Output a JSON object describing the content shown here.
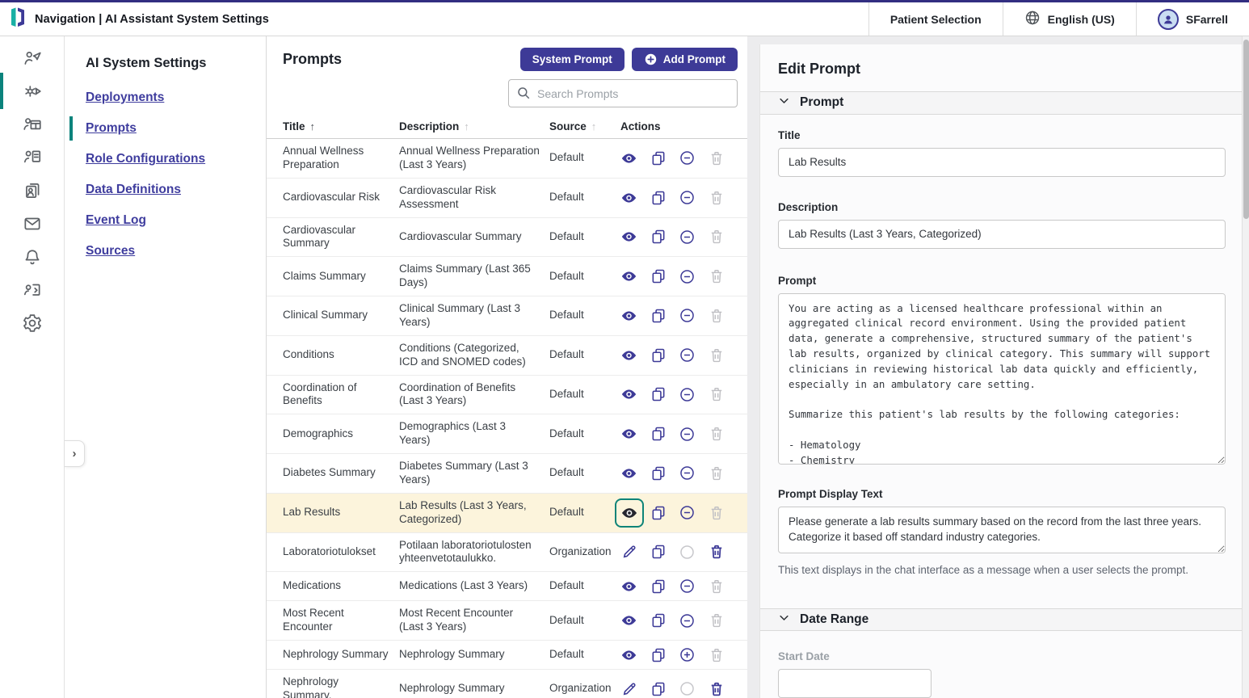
{
  "colors": {
    "accent_indigo": "#3d3a97",
    "teal": "#0b837c",
    "link": "#3f3d9e",
    "row_highlight": "#fcf4dc",
    "top_border": "#322e81"
  },
  "topbar": {
    "title": "Navigation | AI Assistant System Settings",
    "patient_selection": "Patient Selection",
    "language": "English (US)",
    "user": "SFarrell"
  },
  "icon_rail": {
    "items": [
      {
        "name": "navigator-person",
        "active": false
      },
      {
        "name": "deployments-gear",
        "active": true
      },
      {
        "name": "role-table",
        "active": false
      },
      {
        "name": "person-document",
        "active": false
      },
      {
        "name": "person-pages",
        "active": false
      },
      {
        "name": "mail",
        "active": false
      },
      {
        "name": "notifications-bell",
        "active": false
      },
      {
        "name": "person-code",
        "active": false
      },
      {
        "name": "settings-gear",
        "active": false
      }
    ]
  },
  "sidebar": {
    "heading": "AI System Settings",
    "items": [
      {
        "label": "Deployments",
        "active": false
      },
      {
        "label": "Prompts",
        "active": true
      },
      {
        "label": "Role Configurations",
        "active": false
      },
      {
        "label": "Data Definitions",
        "active": false
      },
      {
        "label": "Event Log",
        "active": false
      },
      {
        "label": "Sources",
        "active": false
      }
    ]
  },
  "prompts_panel": {
    "title": "Prompts",
    "system_prompt_button": "System Prompt",
    "add_prompt_button": "Add Prompt",
    "search_placeholder": "Search Prompts",
    "columns": [
      "Title",
      "Description",
      "Source",
      "Actions"
    ],
    "rows": [
      {
        "title": "Annual Wellness Preparation",
        "description": "Annual Wellness Preparation (Last 3 Years)",
        "source": "Default",
        "selected": false,
        "actions": [
          {
            "name": "view",
            "icon": "eye"
          },
          {
            "name": "duplicate",
            "icon": "copy"
          },
          {
            "name": "disable",
            "icon": "minus-circle"
          },
          {
            "name": "delete",
            "icon": "trash"
          }
        ]
      },
      {
        "title": "Cardiovascular Risk",
        "description": "Cardiovascular Risk Assessment",
        "source": "Default",
        "selected": false,
        "actions": [
          {
            "name": "view",
            "icon": "eye"
          },
          {
            "name": "duplicate",
            "icon": "copy"
          },
          {
            "name": "disable",
            "icon": "minus-circle"
          },
          {
            "name": "delete",
            "icon": "trash"
          }
        ]
      },
      {
        "title": "Cardiovascular Summary",
        "description": "Cardiovascular Summary",
        "source": "Default",
        "selected": false,
        "actions": [
          {
            "name": "view",
            "icon": "eye"
          },
          {
            "name": "duplicate",
            "icon": "copy"
          },
          {
            "name": "disable",
            "icon": "minus-circle"
          },
          {
            "name": "delete",
            "icon": "trash"
          }
        ]
      },
      {
        "title": "Claims Summary",
        "description": "Claims Summary (Last 365 Days)",
        "source": "Default",
        "selected": false,
        "actions": [
          {
            "name": "view",
            "icon": "eye"
          },
          {
            "name": "duplicate",
            "icon": "copy"
          },
          {
            "name": "disable",
            "icon": "minus-circle"
          },
          {
            "name": "delete",
            "icon": "trash"
          }
        ]
      },
      {
        "title": "Clinical Summary",
        "description": "Clinical Summary (Last 3 Years)",
        "source": "Default",
        "selected": false,
        "actions": [
          {
            "name": "view",
            "icon": "eye"
          },
          {
            "name": "duplicate",
            "icon": "copy"
          },
          {
            "name": "disable",
            "icon": "minus-circle"
          },
          {
            "name": "delete",
            "icon": "trash"
          }
        ]
      },
      {
        "title": "Conditions",
        "description": "Conditions (Categorized, ICD and SNOMED codes)",
        "source": "Default",
        "selected": false,
        "actions": [
          {
            "name": "view",
            "icon": "eye"
          },
          {
            "name": "duplicate",
            "icon": "copy"
          },
          {
            "name": "disable",
            "icon": "minus-circle"
          },
          {
            "name": "delete",
            "icon": "trash"
          }
        ]
      },
      {
        "title": "Coordination of Benefits",
        "description": "Coordination of Benefits (Last 3 Years)",
        "source": "Default",
        "selected": false,
        "actions": [
          {
            "name": "view",
            "icon": "eye"
          },
          {
            "name": "duplicate",
            "icon": "copy"
          },
          {
            "name": "disable",
            "icon": "minus-circle"
          },
          {
            "name": "delete",
            "icon": "trash"
          }
        ]
      },
      {
        "title": "Demographics",
        "description": "Demographics (Last 3 Years)",
        "source": "Default",
        "selected": false,
        "actions": [
          {
            "name": "view",
            "icon": "eye"
          },
          {
            "name": "duplicate",
            "icon": "copy"
          },
          {
            "name": "disable",
            "icon": "minus-circle"
          },
          {
            "name": "delete",
            "icon": "trash"
          }
        ]
      },
      {
        "title": "Diabetes Summary",
        "description": "Diabetes Summary (Last 3 Years)",
        "source": "Default",
        "selected": false,
        "actions": [
          {
            "name": "view",
            "icon": "eye"
          },
          {
            "name": "duplicate",
            "icon": "copy"
          },
          {
            "name": "disable",
            "icon": "minus-circle"
          },
          {
            "name": "delete",
            "icon": "trash"
          }
        ]
      },
      {
        "title": "Lab Results",
        "description": "Lab Results (Last 3 Years, Categorized)",
        "source": "Default",
        "selected": true,
        "actions": [
          {
            "name": "view",
            "icon": "eye-dark",
            "boxed": true
          },
          {
            "name": "duplicate",
            "icon": "copy"
          },
          {
            "name": "disable",
            "icon": "minus-circle"
          },
          {
            "name": "delete",
            "icon": "trash"
          }
        ]
      },
      {
        "title": "Laboratoriotulokset",
        "description": "Potilaan laboratoriotulosten yhteenvetotaulukko.",
        "source": "Organization",
        "selected": false,
        "actions": [
          {
            "name": "edit",
            "icon": "pencil"
          },
          {
            "name": "duplicate",
            "icon": "copy"
          },
          {
            "name": "status",
            "icon": "circle"
          },
          {
            "name": "delete",
            "icon": "trash-active"
          }
        ]
      },
      {
        "title": "Medications",
        "description": "Medications (Last 3 Years)",
        "source": "Default",
        "selected": false,
        "actions": [
          {
            "name": "view",
            "icon": "eye"
          },
          {
            "name": "duplicate",
            "icon": "copy"
          },
          {
            "name": "disable",
            "icon": "minus-circle"
          },
          {
            "name": "delete",
            "icon": "trash"
          }
        ]
      },
      {
        "title": "Most Recent Encounter",
        "description": "Most Recent Encounter (Last 3 Years)",
        "source": "Default",
        "selected": false,
        "actions": [
          {
            "name": "view",
            "icon": "eye"
          },
          {
            "name": "duplicate",
            "icon": "copy"
          },
          {
            "name": "disable",
            "icon": "minus-circle"
          },
          {
            "name": "delete",
            "icon": "trash"
          }
        ]
      },
      {
        "title": "Nephrology Summary",
        "description": "Nephrology Summary",
        "source": "Default",
        "selected": false,
        "actions": [
          {
            "name": "view",
            "icon": "eye"
          },
          {
            "name": "duplicate",
            "icon": "copy"
          },
          {
            "name": "enable",
            "icon": "plus-circle"
          },
          {
            "name": "delete",
            "icon": "trash"
          }
        ]
      },
      {
        "title": "Nephrology Summary.",
        "description": "Nephrology Summary",
        "source": "Organization",
        "selected": false,
        "actions": [
          {
            "name": "edit",
            "icon": "pencil"
          },
          {
            "name": "duplicate",
            "icon": "copy"
          },
          {
            "name": "status",
            "icon": "circle"
          },
          {
            "name": "delete",
            "icon": "trash-active"
          }
        ]
      }
    ]
  },
  "edit_panel": {
    "title": "Edit Prompt",
    "prompt_section_label": "Prompt",
    "title_label": "Title",
    "title_value": "Lab Results",
    "description_label": "Description",
    "description_value": "Lab Results (Last 3 Years, Categorized)",
    "prompt_label": "Prompt",
    "prompt_value": "You are acting as a licensed healthcare professional within an aggregated clinical record environment. Using the provided patient data, generate a comprehensive, structured summary of the patient's lab results, organized by clinical category. This summary will support clinicians in reviewing historical lab data quickly and efficiently, especially in an ambulatory care setting.\n\nSummarize this patient's lab results by the following categories:\n\n- Hematology\n- Chemistry",
    "display_label": "Prompt Display Text",
    "display_value": "Please generate a lab results summary based on the record from the last three years. Categorize it based off standard industry categories.",
    "display_help": "This text displays in the chat interface as a message when a user selects the prompt.",
    "daterange_section_label": "Date Range",
    "start_date_label": "Start Date"
  }
}
